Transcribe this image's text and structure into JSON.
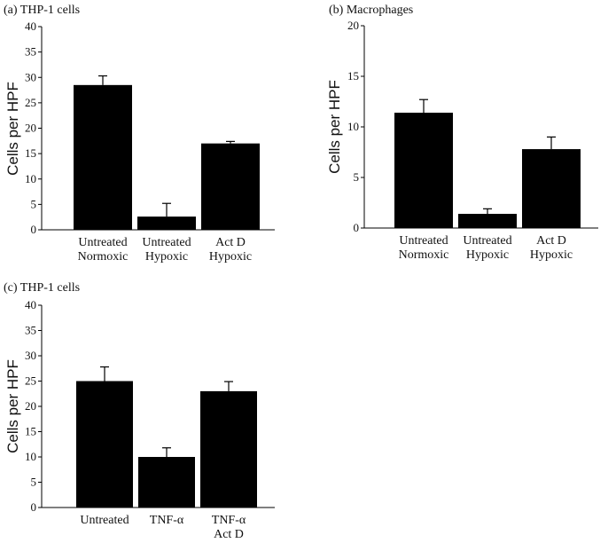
{
  "chart_data": [
    {
      "type": "bar",
      "title": "(a) THP-1 cells",
      "ylabel": "Cells per HPF",
      "xlabel": "",
      "ylim": [
        0,
        40
      ],
      "yticks": [
        "0",
        "5",
        "10",
        "15",
        "20",
        "25",
        "30",
        "35",
        "40"
      ],
      "categories": [
        [
          "Untreated",
          "Normoxic"
        ],
        [
          "Untreated",
          "Hypoxic"
        ],
        [
          "Act D",
          "Hypoxic"
        ]
      ],
      "values": [
        28.5,
        2.6,
        17.0
      ],
      "errors": [
        1.8,
        2.6,
        0.4
      ],
      "grid": false,
      "color": "#000000"
    },
    {
      "type": "bar",
      "title": "(b) Macrophages",
      "ylabel": "Cells per HPF",
      "xlabel": "",
      "ylim": [
        0,
        20
      ],
      "yticks": [
        "0",
        "5",
        "10",
        "15",
        "20"
      ],
      "categories": [
        [
          "Untreated",
          "Normoxic"
        ],
        [
          "Untreated",
          "Hypoxic"
        ],
        [
          "Act D",
          "Hypoxic"
        ]
      ],
      "values": [
        11.4,
        1.4,
        7.8
      ],
      "errors": [
        1.3,
        0.5,
        1.2
      ],
      "grid": false,
      "color": "#000000"
    },
    {
      "type": "bar",
      "title": "(c) THP-1 cells",
      "ylabel": "Cells per HPF",
      "xlabel": "",
      "ylim": [
        0,
        40
      ],
      "yticks": [
        "0",
        "5",
        "10",
        "15",
        "20",
        "25",
        "30",
        "35",
        "40"
      ],
      "categories": [
        [
          "Untreated"
        ],
        [
          "TNF-α"
        ],
        [
          "TNF-α",
          "Act D"
        ]
      ],
      "values": [
        25.0,
        10.0,
        23.0
      ],
      "errors": [
        2.8,
        1.8,
        1.9
      ],
      "grid": false,
      "color": "#000000"
    }
  ]
}
